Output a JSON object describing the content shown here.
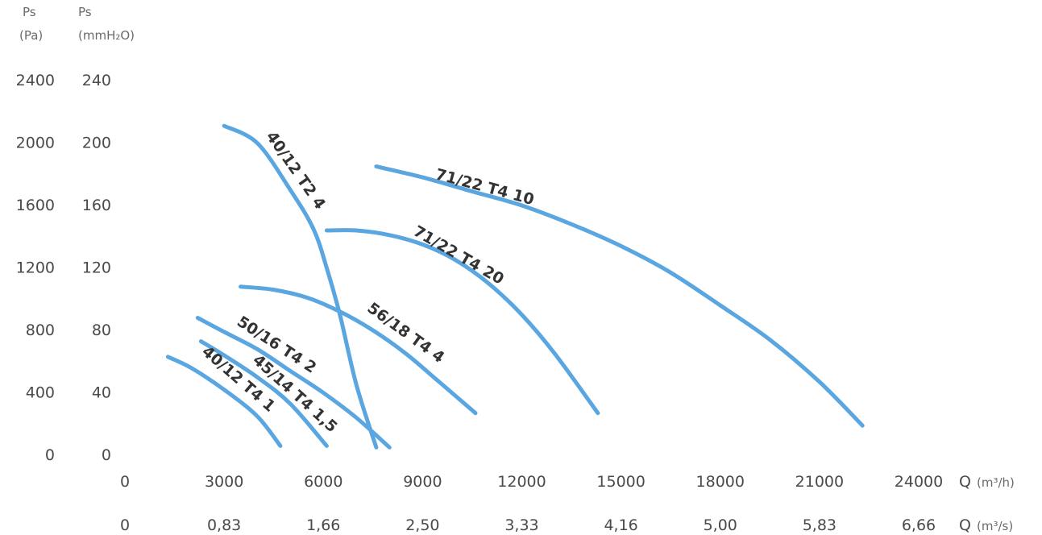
{
  "chart_data": {
    "type": "line",
    "y_axis_pa": {
      "header": "Ps",
      "unit": "(Pa)",
      "ticks": [
        "0",
        "400",
        "800",
        "1200",
        "1600",
        "2000",
        "2400"
      ],
      "ylim": [
        0,
        2400
      ]
    },
    "y_axis_mmh2o": {
      "header": "Ps",
      "unit": "(mmH₂O)",
      "ticks": [
        "0",
        "40",
        "80",
        "120",
        "160",
        "200",
        "240"
      ]
    },
    "x_axis_m3h": {
      "ticks": [
        "0",
        "3000",
        "6000",
        "9000",
        "12000",
        "15000",
        "18000",
        "21000",
        "24000"
      ],
      "label": "Q",
      "unit": "(m³/h)",
      "xlim": [
        0,
        24000
      ]
    },
    "x_axis_m3s": {
      "ticks": [
        "0",
        "0,83",
        "1,66",
        "2,50",
        "3,33",
        "4,16",
        "5,00",
        "5,83",
        "6,66"
      ],
      "label": "Q",
      "unit": "(m³/s)"
    },
    "series": [
      {
        "name": "40/12 T2 4",
        "x": [
          3000,
          4000,
          5000,
          5700,
          6100,
          6500,
          7000,
          7600
        ],
        "y": [
          2110,
          2000,
          1700,
          1450,
          1200,
          900,
          450,
          50
        ]
      },
      {
        "name": "71/22 T4 20",
        "x": [
          6100,
          7000,
          8000,
          9000,
          10000,
          11000,
          12000,
          13000,
          14300
        ],
        "y": [
          1440,
          1440,
          1410,
          1350,
          1250,
          1100,
          900,
          650,
          270
        ]
      },
      {
        "name": "71/22 T4 10",
        "x": [
          7600,
          9000,
          10500,
          12000,
          13500,
          15000,
          16500,
          18000,
          19500,
          21000,
          22300
        ],
        "y": [
          1850,
          1780,
          1690,
          1600,
          1480,
          1340,
          1170,
          960,
          740,
          470,
          190
        ]
      },
      {
        "name": "56/18 T4 4",
        "x": [
          3500,
          4500,
          5500,
          6500,
          7500,
          8500,
          9500,
          10600
        ],
        "y": [
          1080,
          1060,
          1010,
          920,
          800,
          650,
          470,
          270
        ]
      },
      {
        "name": "50/16 T4 2",
        "x": [
          2200,
          3000,
          4000,
          5000,
          6000,
          7000,
          8000
        ],
        "y": [
          880,
          790,
          680,
          540,
          400,
          240,
          50
        ]
      },
      {
        "name": "45/14 T4 1,5",
        "x": [
          2300,
          3000,
          4000,
          5000,
          6100
        ],
        "y": [
          730,
          640,
          500,
          330,
          60
        ]
      },
      {
        "name": "40/12 T4 1",
        "x": [
          1300,
          2000,
          3000,
          4000,
          4700
        ],
        "y": [
          630,
          560,
          420,
          250,
          60
        ]
      }
    ]
  }
}
